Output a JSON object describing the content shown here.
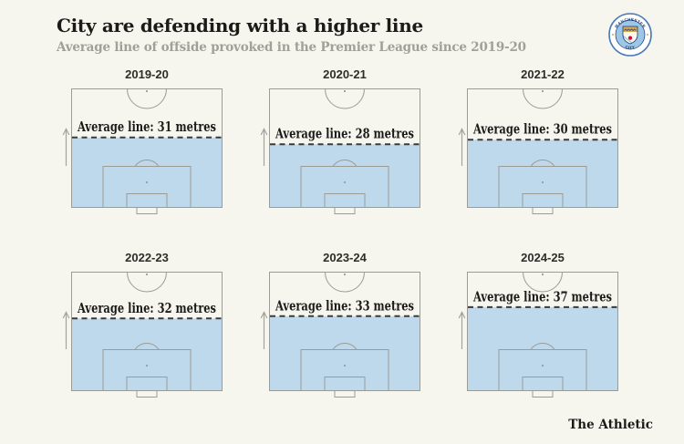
{
  "header": {
    "title": "City are defending with a higher line",
    "subtitle": "Average line of offside provoked in the Premier League since 2019-20"
  },
  "badge": {
    "top_text": "MANCHESTER",
    "bottom_text": "CITY"
  },
  "chart_data": {
    "type": "bar",
    "title": "City are defending with a higher line",
    "subtitle": "Average line of offside provoked in the Premier League since 2019-20",
    "categories": [
      "2019-20",
      "2020-21",
      "2021-22",
      "2022-23",
      "2023-24",
      "2024-25"
    ],
    "values": [
      31,
      28,
      30,
      32,
      33,
      37
    ],
    "unit": "metres",
    "value_labels": [
      "Average line: 31 metres",
      "Average line: 28 metres",
      "Average line: 30 metres",
      "Average line: 32 metres",
      "Average line: 33 metres",
      "Average line: 37 metres"
    ],
    "ylim": [
      0,
      52.5
    ],
    "legend_position": "none",
    "grid": false,
    "layout": "2 rows x 3 columns of half-pitch diagrams; shaded area spans goal line up to the average offside line marked by a dashed rule"
  },
  "footer": {
    "credit": "The Athletic"
  },
  "colors": {
    "background": "#f6f5ee",
    "shaded_area": "#bed8ec",
    "pitch_lines": "#9c9c96",
    "dashed_line": "#3b3b38",
    "title_text": "#1b1b19",
    "subtitle_text": "#a09f98"
  }
}
